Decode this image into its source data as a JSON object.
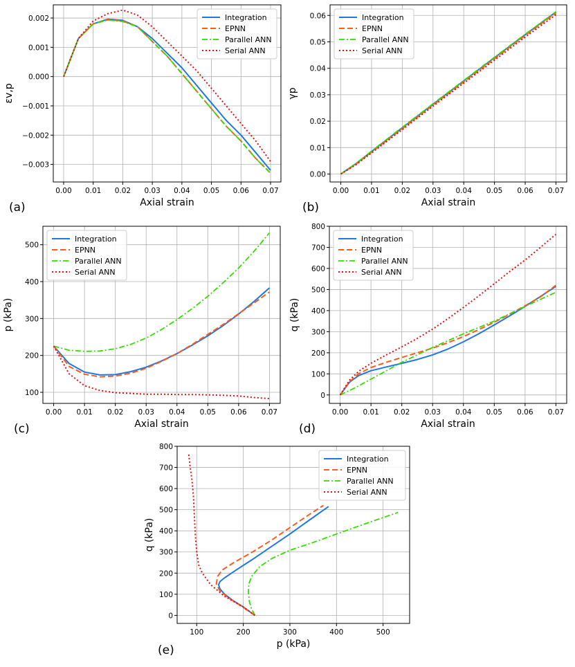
{
  "series_styles": [
    {
      "name": "Integration",
      "color": "#1f77e4",
      "dash": "",
      "width": 2
    },
    {
      "name": "EPNN",
      "color": "#ff5a1a",
      "dash": "8,4",
      "width": 2
    },
    {
      "name": "Parallel ANN",
      "color": "#33dd00",
      "dash": "8,3,2,3",
      "width": 1.8
    },
    {
      "name": "Serial ANN",
      "color": "#e01010",
      "dash": "2,3",
      "width": 2
    }
  ],
  "chart_data": [
    {
      "panel": "(a)",
      "type": "line",
      "xlabel": "Axial strain",
      "ylabel": "εv,p",
      "xlim": [
        -0.0035,
        0.0735
      ],
      "ylim": [
        -0.0036,
        0.00245
      ],
      "xticks": [
        0,
        0.01,
        0.02,
        0.03,
        0.04,
        0.05,
        0.06,
        0.07
      ],
      "xtick_labels": [
        "0.00",
        "0.01",
        "0.02",
        "0.03",
        "0.04",
        "0.05",
        "0.06",
        "0.07"
      ],
      "yticks": [
        -0.003,
        -0.002,
        -0.001,
        0,
        0.001,
        0.002
      ],
      "ytick_labels": [
        "−0.003",
        "−0.002",
        "−0.001",
        "0.000",
        "0.001",
        "0.002"
      ],
      "legend": "top-right",
      "series": [
        {
          "name": "Integration",
          "x": [
            0,
            0.005,
            0.01,
            0.015,
            0.02,
            0.025,
            0.03,
            0.035,
            0.04,
            0.045,
            0.05,
            0.055,
            0.06,
            0.065,
            0.07
          ],
          "y": [
            0,
            0.0013,
            0.0018,
            0.00196,
            0.00192,
            0.0017,
            0.0013,
            0.0008,
            0.0003,
            -0.0003,
            -0.0009,
            -0.0015,
            -0.002,
            -0.0026,
            -0.0032
          ]
        },
        {
          "name": "EPNN",
          "x": [
            0,
            0.005,
            0.01,
            0.015,
            0.02,
            0.025,
            0.03,
            0.035,
            0.04,
            0.045,
            0.05,
            0.055,
            0.06,
            0.065,
            0.07
          ],
          "y": [
            0,
            0.0013,
            0.0018,
            0.00194,
            0.0019,
            0.0017,
            0.0012,
            0.0007,
            0.0001,
            -0.0005,
            -0.0011,
            -0.0017,
            -0.0022,
            -0.0028,
            -0.0033
          ]
        },
        {
          "name": "Parallel ANN",
          "x": [
            0,
            0.005,
            0.01,
            0.015,
            0.02,
            0.025,
            0.03,
            0.035,
            0.04,
            0.045,
            0.05,
            0.055,
            0.06,
            0.065,
            0.07
          ],
          "y": [
            0,
            0.0013,
            0.0018,
            0.00193,
            0.00188,
            0.0017,
            0.0012,
            0.0007,
            0.0001,
            -0.0005,
            -0.0011,
            -0.0017,
            -0.0022,
            -0.0028,
            -0.0033
          ]
        },
        {
          "name": "Serial ANN",
          "x": [
            0,
            0.005,
            0.01,
            0.015,
            0.02,
            0.025,
            0.03,
            0.035,
            0.04,
            0.045,
            0.05,
            0.055,
            0.06,
            0.065,
            0.07
          ],
          "y": [
            0,
            0.0013,
            0.0019,
            0.00215,
            0.00227,
            0.0021,
            0.0017,
            0.0012,
            0.0007,
            0.0002,
            -0.0004,
            -0.001,
            -0.0016,
            -0.0022,
            -0.0029
          ]
        }
      ]
    },
    {
      "panel": "(b)",
      "type": "line",
      "xlabel": "Axial strain",
      "ylabel": "γp",
      "xlim": [
        -0.0035,
        0.0735
      ],
      "ylim": [
        -0.003,
        0.064
      ],
      "xticks": [
        0,
        0.01,
        0.02,
        0.03,
        0.04,
        0.05,
        0.06,
        0.07
      ],
      "xtick_labels": [
        "0.00",
        "0.01",
        "0.02",
        "0.03",
        "0.04",
        "0.05",
        "0.06",
        "0.07"
      ],
      "yticks": [
        0,
        0.01,
        0.02,
        0.03,
        0.04,
        0.05,
        0.06
      ],
      "ytick_labels": [
        "0.00",
        "0.01",
        "0.02",
        "0.03",
        "0.04",
        "0.05",
        "0.06"
      ],
      "legend": "top-left",
      "series": [
        {
          "name": "Integration",
          "x": [
            0,
            0.005,
            0.01,
            0.02,
            0.03,
            0.04,
            0.05,
            0.06,
            0.07
          ],
          "y": [
            0,
            0.004,
            0.0085,
            0.0175,
            0.0264,
            0.0352,
            0.044,
            0.0527,
            0.0613
          ]
        },
        {
          "name": "EPNN",
          "x": [
            0,
            0.005,
            0.01,
            0.02,
            0.03,
            0.04,
            0.05,
            0.06,
            0.07
          ],
          "y": [
            0,
            0.0038,
            0.0083,
            0.0172,
            0.0261,
            0.0349,
            0.0436,
            0.0524,
            0.061
          ]
        },
        {
          "name": "Parallel ANN",
          "x": [
            0,
            0.005,
            0.01,
            0.02,
            0.03,
            0.04,
            0.05,
            0.06,
            0.07
          ],
          "y": [
            0,
            0.0041,
            0.0087,
            0.0177,
            0.0266,
            0.0354,
            0.0442,
            0.0529,
            0.0614
          ]
        },
        {
          "name": "Serial ANN",
          "x": [
            0,
            0.005,
            0.01,
            0.02,
            0.03,
            0.04,
            0.05,
            0.06,
            0.07
          ],
          "y": [
            0,
            0.0036,
            0.008,
            0.0168,
            0.0257,
            0.0344,
            0.0431,
            0.0518,
            0.0603
          ]
        }
      ]
    },
    {
      "panel": "(c)",
      "type": "line",
      "xlabel": "Axial strain",
      "ylabel": "p (kPa)",
      "xlim": [
        -0.0035,
        0.0735
      ],
      "ylim": [
        70,
        550
      ],
      "xticks": [
        0,
        0.01,
        0.02,
        0.03,
        0.04,
        0.05,
        0.06,
        0.07
      ],
      "xtick_labels": [
        "0.00",
        "0.01",
        "0.02",
        "0.03",
        "0.04",
        "0.05",
        "0.06",
        "0.07"
      ],
      "yticks": [
        100,
        200,
        300,
        400,
        500
      ],
      "ytick_labels": [
        "100",
        "200",
        "300",
        "400",
        "500"
      ],
      "legend": "top-left",
      "series": [
        {
          "name": "Integration",
          "x": [
            0,
            0.005,
            0.01,
            0.015,
            0.02,
            0.025,
            0.03,
            0.035,
            0.04,
            0.045,
            0.05,
            0.055,
            0.06,
            0.065,
            0.07
          ],
          "y": [
            225,
            178,
            155,
            147,
            148,
            156,
            168,
            185,
            205,
            228,
            253,
            281,
            312,
            346,
            383
          ]
        },
        {
          "name": "EPNN",
          "x": [
            0,
            0.005,
            0.01,
            0.015,
            0.02,
            0.025,
            0.03,
            0.035,
            0.04,
            0.045,
            0.05,
            0.055,
            0.06,
            0.065,
            0.07
          ],
          "y": [
            225,
            170,
            149,
            142,
            144,
            152,
            165,
            184,
            205,
            230,
            257,
            284,
            313,
            342,
            372
          ]
        },
        {
          "name": "Parallel ANN",
          "x": [
            0,
            0.005,
            0.01,
            0.015,
            0.02,
            0.025,
            0.03,
            0.035,
            0.04,
            0.045,
            0.05,
            0.055,
            0.06,
            0.065,
            0.07
          ],
          "y": [
            225,
            214,
            211,
            212,
            218,
            230,
            247,
            270,
            297,
            327,
            360,
            397,
            437,
            482,
            532
          ]
        },
        {
          "name": "Serial ANN",
          "x": [
            0,
            0.005,
            0.01,
            0.015,
            0.02,
            0.025,
            0.03,
            0.035,
            0.04,
            0.045,
            0.05,
            0.055,
            0.06,
            0.065,
            0.07
          ],
          "y": [
            225,
            150,
            118,
            105,
            99,
            97,
            95,
            95,
            94,
            94,
            93,
            92,
            90,
            86,
            83
          ]
        }
      ]
    },
    {
      "panel": "(d)",
      "type": "line",
      "xlabel": "Axial strain",
      "ylabel": "q (kPa)",
      "xlim": [
        -0.0035,
        0.0735
      ],
      "ylim": [
        -40,
        800
      ],
      "xticks": [
        0,
        0.01,
        0.02,
        0.03,
        0.04,
        0.05,
        0.06,
        0.07
      ],
      "xtick_labels": [
        "0.00",
        "0.01",
        "0.02",
        "0.03",
        "0.04",
        "0.05",
        "0.06",
        "0.07"
      ],
      "yticks": [
        0,
        100,
        200,
        300,
        400,
        500,
        600,
        700,
        800
      ],
      "ytick_labels": [
        "0",
        "100",
        "200",
        "300",
        "400",
        "500",
        "600",
        "700",
        "800"
      ],
      "legend": "top-left",
      "series": [
        {
          "name": "Integration",
          "x": [
            0,
            0.003,
            0.006,
            0.01,
            0.015,
            0.02,
            0.025,
            0.03,
            0.035,
            0.04,
            0.045,
            0.05,
            0.055,
            0.06,
            0.065,
            0.07
          ],
          "y": [
            0,
            60,
            92,
            115,
            133,
            150,
            168,
            190,
            218,
            252,
            290,
            332,
            375,
            420,
            467,
            515
          ]
        },
        {
          "name": "EPNN",
          "x": [
            0,
            0.003,
            0.006,
            0.01,
            0.015,
            0.02,
            0.025,
            0.03,
            0.035,
            0.04,
            0.045,
            0.05,
            0.055,
            0.06,
            0.065,
            0.07
          ],
          "y": [
            0,
            62,
            100,
            130,
            155,
            178,
            200,
            222,
            248,
            277,
            310,
            345,
            383,
            423,
            465,
            520
          ]
        },
        {
          "name": "Parallel ANN",
          "x": [
            0,
            0.005,
            0.01,
            0.02,
            0.03,
            0.04,
            0.05,
            0.06,
            0.07
          ],
          "y": [
            0,
            35,
            75,
            155,
            225,
            290,
            350,
            420,
            487
          ]
        },
        {
          "name": "Serial ANN",
          "x": [
            0,
            0.003,
            0.006,
            0.01,
            0.015,
            0.02,
            0.025,
            0.03,
            0.035,
            0.04,
            0.045,
            0.05,
            0.055,
            0.06,
            0.065,
            0.07
          ],
          "y": [
            0,
            70,
            112,
            150,
            190,
            228,
            268,
            312,
            362,
            415,
            470,
            527,
            585,
            640,
            700,
            762
          ]
        }
      ]
    },
    {
      "panel": "(e)",
      "type": "line",
      "xlabel": "p (kPa)",
      "ylabel": "q (kPa)",
      "xlim": [
        58,
        557
      ],
      "ylim": [
        -38,
        800
      ],
      "xticks": [
        100,
        200,
        300,
        400,
        500
      ],
      "xtick_labels": [
        "100",
        "200",
        "300",
        "400",
        "500"
      ],
      "yticks": [
        0,
        100,
        200,
        300,
        400,
        500,
        600,
        700,
        800
      ],
      "ytick_labels": [
        "0",
        "100",
        "200",
        "300",
        "400",
        "500",
        "600",
        "700",
        "800"
      ],
      "legend": "top-right",
      "series": [
        {
          "name": "Integration",
          "x": [
            225,
            200,
            178,
            160,
            150,
            147,
            150,
            160,
            185,
            220,
            260,
            300,
            340,
            383
          ],
          "y": [
            0,
            40,
            70,
            100,
            125,
            145,
            160,
            178,
            215,
            265,
            325,
            385,
            448,
            515
          ]
        },
        {
          "name": "EPNN",
          "x": [
            225,
            195,
            170,
            150,
            142,
            145,
            155,
            180,
            220,
            260,
            300,
            340,
            372
          ],
          "y": [
            0,
            45,
            80,
            115,
            150,
            185,
            215,
            250,
            300,
            355,
            415,
            475,
            520
          ]
        },
        {
          "name": "Parallel ANN",
          "x": [
            225,
            218,
            213,
            211,
            212,
            218,
            235,
            262,
            300,
            350,
            400,
            460,
            532
          ],
          "y": [
            0,
            30,
            65,
            110,
            150,
            185,
            230,
            270,
            308,
            345,
            385,
            432,
            487
          ]
        },
        {
          "name": "Serial ANN",
          "x": [
            225,
            200,
            160,
            130,
            112,
            104,
            100,
            97,
            95,
            93,
            90,
            86,
            83
          ],
          "y": [
            0,
            40,
            90,
            145,
            200,
            240,
            300,
            380,
            470,
            560,
            640,
            700,
            762
          ]
        }
      ]
    }
  ],
  "panel_labels": [
    "(a)",
    "(b)",
    "(c)",
    "(d)",
    "(e)"
  ]
}
